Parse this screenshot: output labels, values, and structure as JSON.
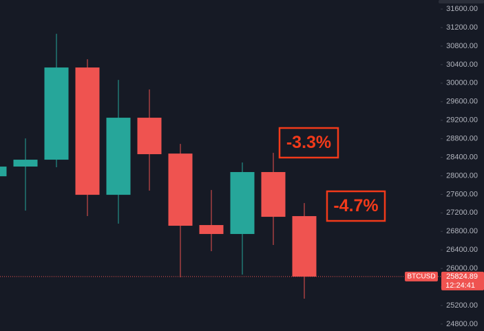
{
  "chart_data": {
    "type": "candlestick",
    "symbol": "BTCUSD",
    "last_price": 25824.89,
    "countdown": "12:24:41",
    "up_color": "#26a69a",
    "down_color": "#ef5350",
    "open": [
      27990,
      28200,
      28348,
      30338,
      27590,
      29254,
      28480,
      26937,
      26744,
      28081,
      27130
    ],
    "high": [
      28200,
      28808,
      31065,
      30516,
      30070,
      29863,
      28689,
      27694,
      28288,
      28496,
      27412
    ],
    "low": [
      27990,
      27249,
      28185,
      27130,
      26967,
      27680,
      25808,
      26373,
      25868,
      26507,
      25348
    ],
    "close": [
      28199,
      28348,
      30338,
      27590,
      29254,
      28467,
      26922,
      26744,
      28081,
      27115,
      25824.89
    ],
    "ylim": [
      24650,
      31795
    ],
    "yticks": [
      {
        "value": 31600,
        "label": "31600.00"
      },
      {
        "value": 31200,
        "label": "31200.00"
      },
      {
        "value": 30800,
        "label": "30800.00"
      },
      {
        "value": 30400,
        "label": "30400.00"
      },
      {
        "value": 30000,
        "label": "30000.00"
      },
      {
        "value": 29600,
        "label": "29600.00"
      },
      {
        "value": 29200,
        "label": "29200.00"
      },
      {
        "value": 28800,
        "label": "28800.00"
      },
      {
        "value": 28400,
        "label": "28400.00"
      },
      {
        "value": 28000,
        "label": "28000.00"
      },
      {
        "value": 27600,
        "label": "27600.00"
      },
      {
        "value": 27200,
        "label": "27200.00"
      },
      {
        "value": 26800,
        "label": "26800.00"
      },
      {
        "value": 26400,
        "label": "26400.00"
      },
      {
        "value": 26000,
        "label": "26000.00"
      },
      {
        "value": 25600,
        "label": "25600.00"
      },
      {
        "value": 25200,
        "label": "25200.00"
      },
      {
        "value": 24800,
        "label": "24800.00"
      }
    ],
    "annotations": [
      "-3.3%",
      "-4.7%"
    ]
  }
}
